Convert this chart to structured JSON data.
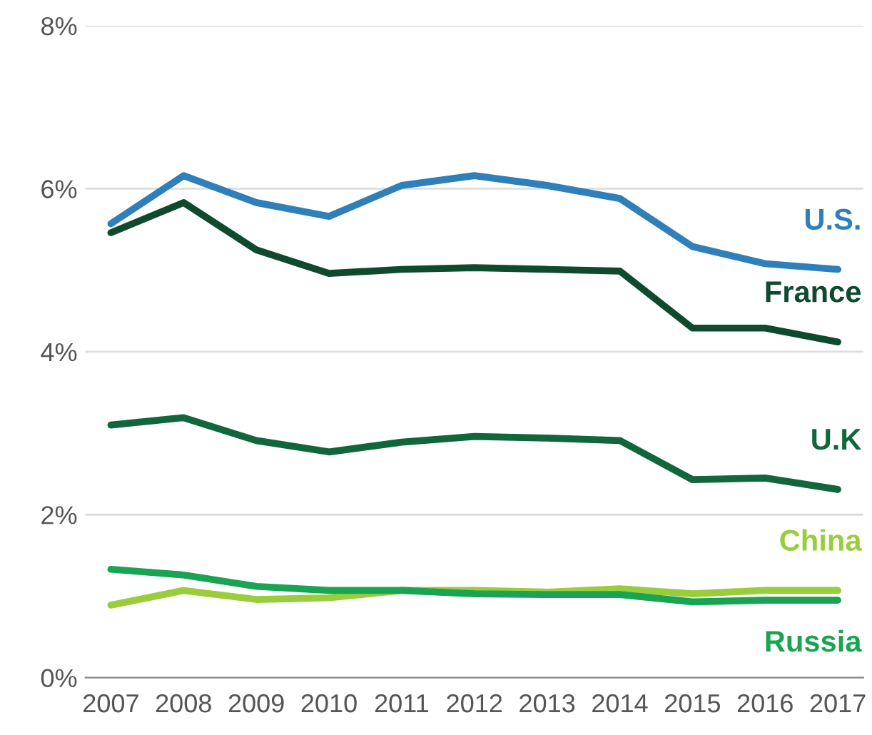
{
  "chart_data": {
    "type": "line",
    "x": [
      2007,
      2008,
      2009,
      2010,
      2011,
      2012,
      2013,
      2014,
      2015,
      2016,
      2017
    ],
    "series": [
      {
        "name": "U.S.",
        "color": "#2f7fba",
        "values": [
          5.57,
          6.16,
          5.83,
          5.66,
          6.04,
          6.16,
          6.04,
          5.88,
          5.29,
          5.08,
          5.01
        ]
      },
      {
        "name": "France",
        "color": "#0f4a2e",
        "values": [
          5.46,
          5.83,
          5.25,
          4.96,
          5.01,
          5.03,
          5.01,
          4.99,
          4.29,
          4.29,
          4.12
        ]
      },
      {
        "name": "U.K",
        "color": "#11663c",
        "values": [
          3.1,
          3.19,
          2.91,
          2.77,
          2.89,
          2.96,
          2.94,
          2.91,
          2.43,
          2.45,
          2.31
        ]
      },
      {
        "name": "China",
        "color": "#9acd3c",
        "values": [
          0.89,
          1.07,
          0.96,
          0.98,
          1.07,
          1.07,
          1.05,
          1.09,
          1.03,
          1.07,
          1.07
        ]
      },
      {
        "name": "Russia",
        "color": "#18a452",
        "values": [
          1.33,
          1.26,
          1.12,
          1.07,
          1.07,
          1.03,
          1.02,
          1.02,
          0.93,
          0.95,
          0.95
        ]
      }
    ],
    "xlim": [
      2006.65,
      2017.35
    ],
    "xticks": [
      2007,
      2008,
      2009,
      2010,
      2011,
      2012,
      2013,
      2014,
      2015,
      2016,
      2017
    ],
    "ylim": [
      0,
      8
    ],
    "yticks": [
      {
        "value": 0,
        "label": "0%"
      },
      {
        "value": 2,
        "label": "2%"
      },
      {
        "value": 4,
        "label": "4%"
      },
      {
        "value": 6,
        "label": "6%"
      },
      {
        "value": 8,
        "label": "8%"
      }
    ],
    "grid": "y",
    "marker": "none",
    "line_style": "solid"
  }
}
